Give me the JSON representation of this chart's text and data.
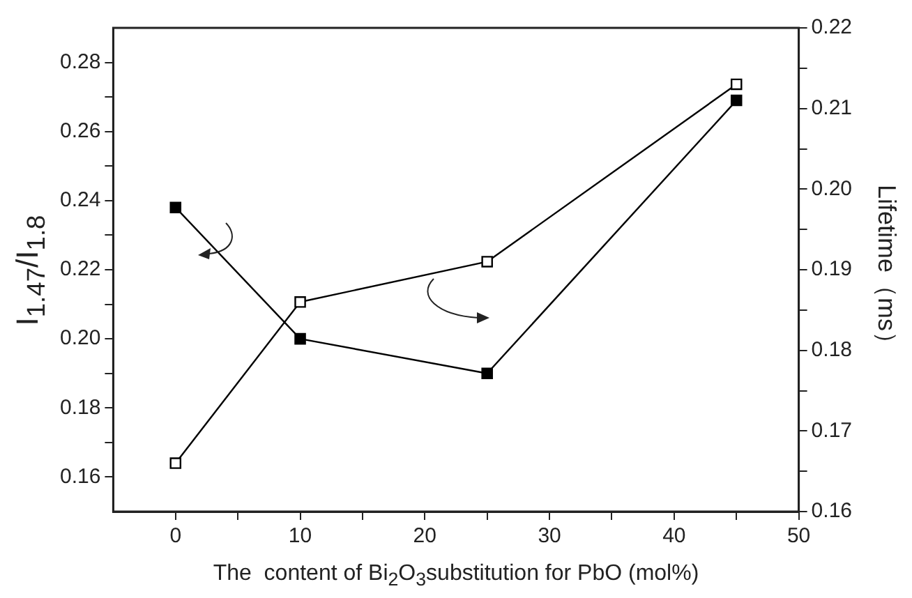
{
  "chart_data": {
    "type": "line",
    "xlabel": "The  content of Bi$_{2}$O$_{3}$substitution for PbO (mol%)",
    "ylabel": "I$_{1.47}$/I$_{1.8}$",
    "y2label": "Lifetime（ms）",
    "x": [
      0,
      10,
      25,
      45
    ],
    "series": [
      {
        "color": "#000000",
        "values": [
          0.238,
          0.2,
          0.19,
          0.269
        ]
      },
      {
        "color": "#000000",
        "values": [
          0.166,
          0.186,
          0.191,
          0.213
        ],
        "axis": "y2"
      }
    ],
    "xlim": [
      -5,
      50
    ],
    "xticks": [
      0,
      {
        "value": 5,
        "label": null
      },
      10,
      {
        "value": 15,
        "label": null
      },
      20,
      {
        "value": 25,
        "label": null
      },
      30,
      {
        "value": 35,
        "label": null
      },
      40,
      {
        "value": 45,
        "label": null
      },
      50
    ],
    "ylim": [
      0.15,
      0.29
    ],
    "yticks": [
      0.16,
      {
        "value": 0.17,
        "label": null
      },
      0.18,
      {
        "value": 0.19,
        "label": null
      },
      {
        "value": 0.2,
        "label": "0.20"
      },
      {
        "value": 0.21,
        "label": null
      },
      0.22,
      {
        "value": 0.23,
        "label": null
      },
      0.24,
      {
        "value": 0.25,
        "label": null
      },
      0.26,
      {
        "value": 0.27,
        "label": null
      },
      0.28
    ],
    "y2lim": [
      0.16,
      0.22
    ],
    "y2ticks": [
      0.16,
      {
        "value": 0.165,
        "label": null
      },
      0.17,
      {
        "value": 0.175,
        "label": null
      },
      0.18,
      {
        "value": 0.185,
        "label": null
      },
      0.19,
      {
        "value": 0.195,
        "label": null
      },
      {
        "value": 0.2,
        "label": "0.20"
      },
      {
        "value": 0.205,
        "label": null
      },
      0.21,
      {
        "value": 0.215,
        "label": null
      },
      0.22
    ],
    "grid": false,
    "legend": false,
    "marker": "square",
    "line_style": "solid"
  }
}
